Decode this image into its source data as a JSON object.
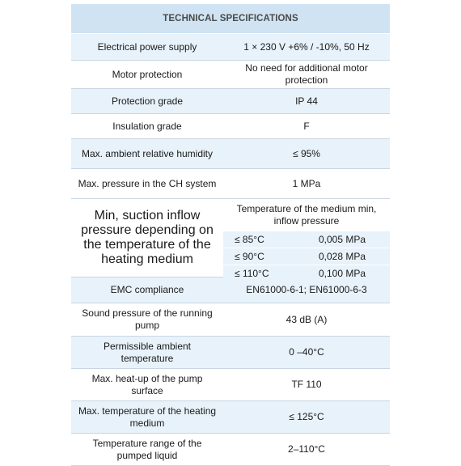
{
  "title": "TECHNICAL SPECIFICATIONS",
  "rows_before": [
    {
      "label": "Electrical power supply",
      "value": "1 × 230 V +6% / -10%, 50 Hz"
    },
    {
      "label": "Motor protection",
      "value": "No need for additional motor protection"
    },
    {
      "label": "Protection grade",
      "value": "IP 44"
    },
    {
      "label": "Insulation grade",
      "value": "F"
    },
    {
      "label": "Max. ambient relative humidity",
      "value": "≤ 95%"
    },
    {
      "label": "Max. pressure in the CH system",
      "value": "1 MPa"
    }
  ],
  "suction": {
    "label": "Min, suction inflow pressure depending on the temperature of the heating medium",
    "subheader": "Temperature of the medium min, inflow pressure",
    "entries": [
      {
        "temp": "≤ 85°C",
        "pressure": "0,005 MPa"
      },
      {
        "temp": "≤ 90°C",
        "pressure": "0,028 MPa"
      },
      {
        "temp": "≤ 110°C",
        "pressure": "0,100 MPa"
      }
    ]
  },
  "rows_after": [
    {
      "label": "EMC compliance",
      "value": "EN61000-6-1; EN61000-6-3"
    },
    {
      "label": "Sound pressure of the running pump",
      "value": "43 dB (A)"
    },
    {
      "label": "Permissible ambient temperature",
      "value": "0 –40°C"
    },
    {
      "label": "Max. heat-up of the pump surface",
      "value": "TF 110"
    },
    {
      "label": "Max. temperature of the heating medium",
      "value": "≤ 125°C"
    },
    {
      "label": "Temperature range of the pumped liquid",
      "value": "2–110°C"
    }
  ]
}
